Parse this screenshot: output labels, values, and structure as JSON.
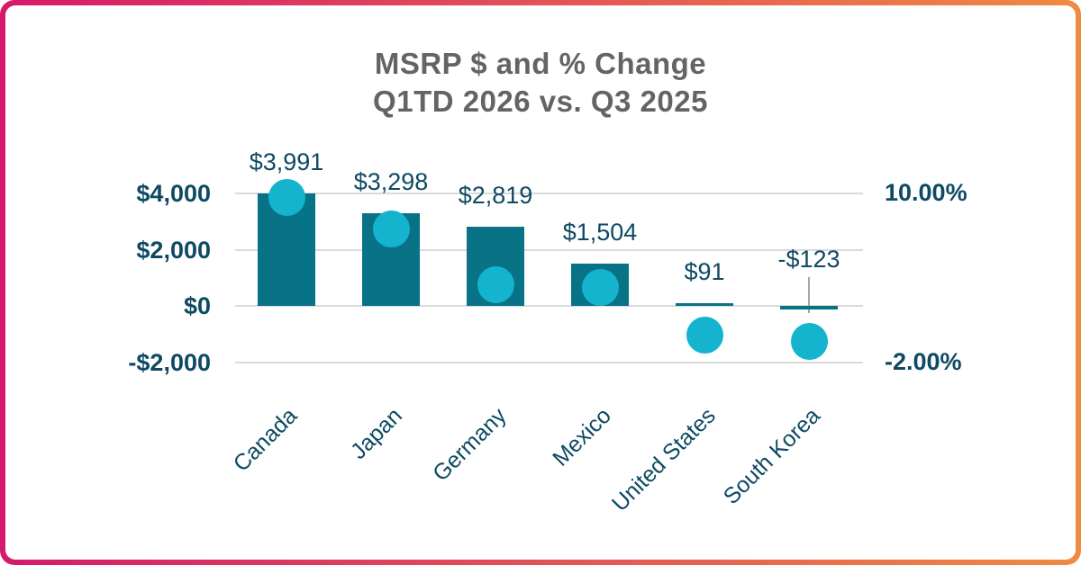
{
  "card": {
    "background": "#ffffff",
    "border_gradient_left": "#d6196b",
    "border_gradient_right": "#f08a43"
  },
  "title": {
    "line1": "MSRP $ and % Change",
    "line2": "Q1TD 2026 vs. Q3 2025",
    "color": "#646464"
  },
  "chart_data": {
    "type": "combo",
    "categories": [
      "Canada",
      "Japan",
      "Germany",
      "Mexico",
      "United States",
      "South Korea"
    ],
    "series": [
      {
        "name": "MSRP $ change",
        "type": "bar",
        "axis": "left",
        "values": [
          3991,
          3298,
          2819,
          1504,
          91,
          -123
        ],
        "labels": [
          "$3,991",
          "$3,298",
          "$2,819",
          "$1,504",
          "$91",
          "-$123"
        ],
        "color": "#087287"
      },
      {
        "name": "% change",
        "type": "dot",
        "axis": "right",
        "estimated": true,
        "values": [
          9.7,
          7.5,
          3.5,
          3.3,
          -0.1,
          -0.5
        ],
        "color": "#14b3ce"
      }
    ],
    "left_axis": {
      "tick_labels": [
        "$4,000",
        "$2,000",
        "$0",
        "-$2,000"
      ],
      "tick_values": [
        4000,
        2000,
        0,
        -2000
      ],
      "range": [
        -2000,
        4000
      ]
    },
    "right_axis": {
      "tick_labels": [
        "10.00%",
        "-2.00%"
      ],
      "tick_values": [
        10,
        -2
      ],
      "range": [
        -2,
        10
      ]
    },
    "grid": true,
    "legend": "none",
    "colors": {
      "axis_text": "#0e4a63",
      "label_text": "#0e4a63",
      "gridline": "#dadada",
      "leader_line": "#a6a6a6"
    }
  }
}
